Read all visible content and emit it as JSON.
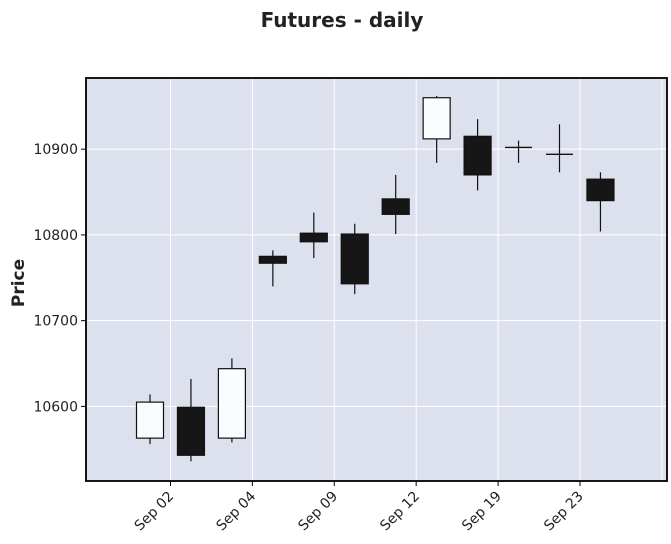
{
  "chart_data": {
    "type": "candlestick",
    "title": "Futures - daily",
    "xlabel": "",
    "ylabel": "Price",
    "ylim": [
      10513,
      10983
    ],
    "yticks": [
      10600,
      10700,
      10800,
      10900
    ],
    "grid": true,
    "colors": {
      "background": "#dde1ee",
      "grid": "#ffffff",
      "up_body": "#fbfcff",
      "down_body": "#161616",
      "edge": "#111111"
    },
    "candles": [
      {
        "index": 0,
        "open": 10563,
        "high": 10614,
        "low": 10556,
        "close": 10605
      },
      {
        "index": 1,
        "open": 10599,
        "high": 10632,
        "low": 10536,
        "close": 10543
      },
      {
        "index": 2,
        "open": 10563,
        "high": 10656,
        "low": 10558,
        "close": 10644
      },
      {
        "index": 3,
        "open": 10775,
        "high": 10782,
        "low": 10740,
        "close": 10767
      },
      {
        "index": 4,
        "open": 10802,
        "high": 10826,
        "low": 10773,
        "close": 10792
      },
      {
        "index": 5,
        "open": 10801,
        "high": 10813,
        "low": 10731,
        "close": 10743
      },
      {
        "index": 6,
        "open": 10842,
        "high": 10870,
        "low": 10801,
        "close": 10824
      },
      {
        "index": 7,
        "open": 10912,
        "high": 10962,
        "low": 10884,
        "close": 10960
      },
      {
        "index": 8,
        "open": 10915,
        "high": 10935,
        "low": 10852,
        "close": 10870
      },
      {
        "index": 9,
        "open": 10902,
        "high": 10910,
        "low": 10884,
        "close": 10902
      },
      {
        "index": 10,
        "open": 10894,
        "high": 10929,
        "low": 10873,
        "close": 10894
      },
      {
        "index": 11,
        "open": 10865,
        "high": 10873,
        "low": 10804,
        "close": 10840
      }
    ],
    "xticks": [
      {
        "index": 0.5,
        "label": "Sep 02"
      },
      {
        "index": 2.5,
        "label": "Sep 04"
      },
      {
        "index": 4.5,
        "label": "Sep 09"
      },
      {
        "index": 6.5,
        "label": "Sep 12"
      },
      {
        "index": 8.5,
        "label": "Sep 19"
      },
      {
        "index": 10.5,
        "label": "Sep 23"
      }
    ],
    "xgrid_extra": [
      12.5
    ]
  }
}
